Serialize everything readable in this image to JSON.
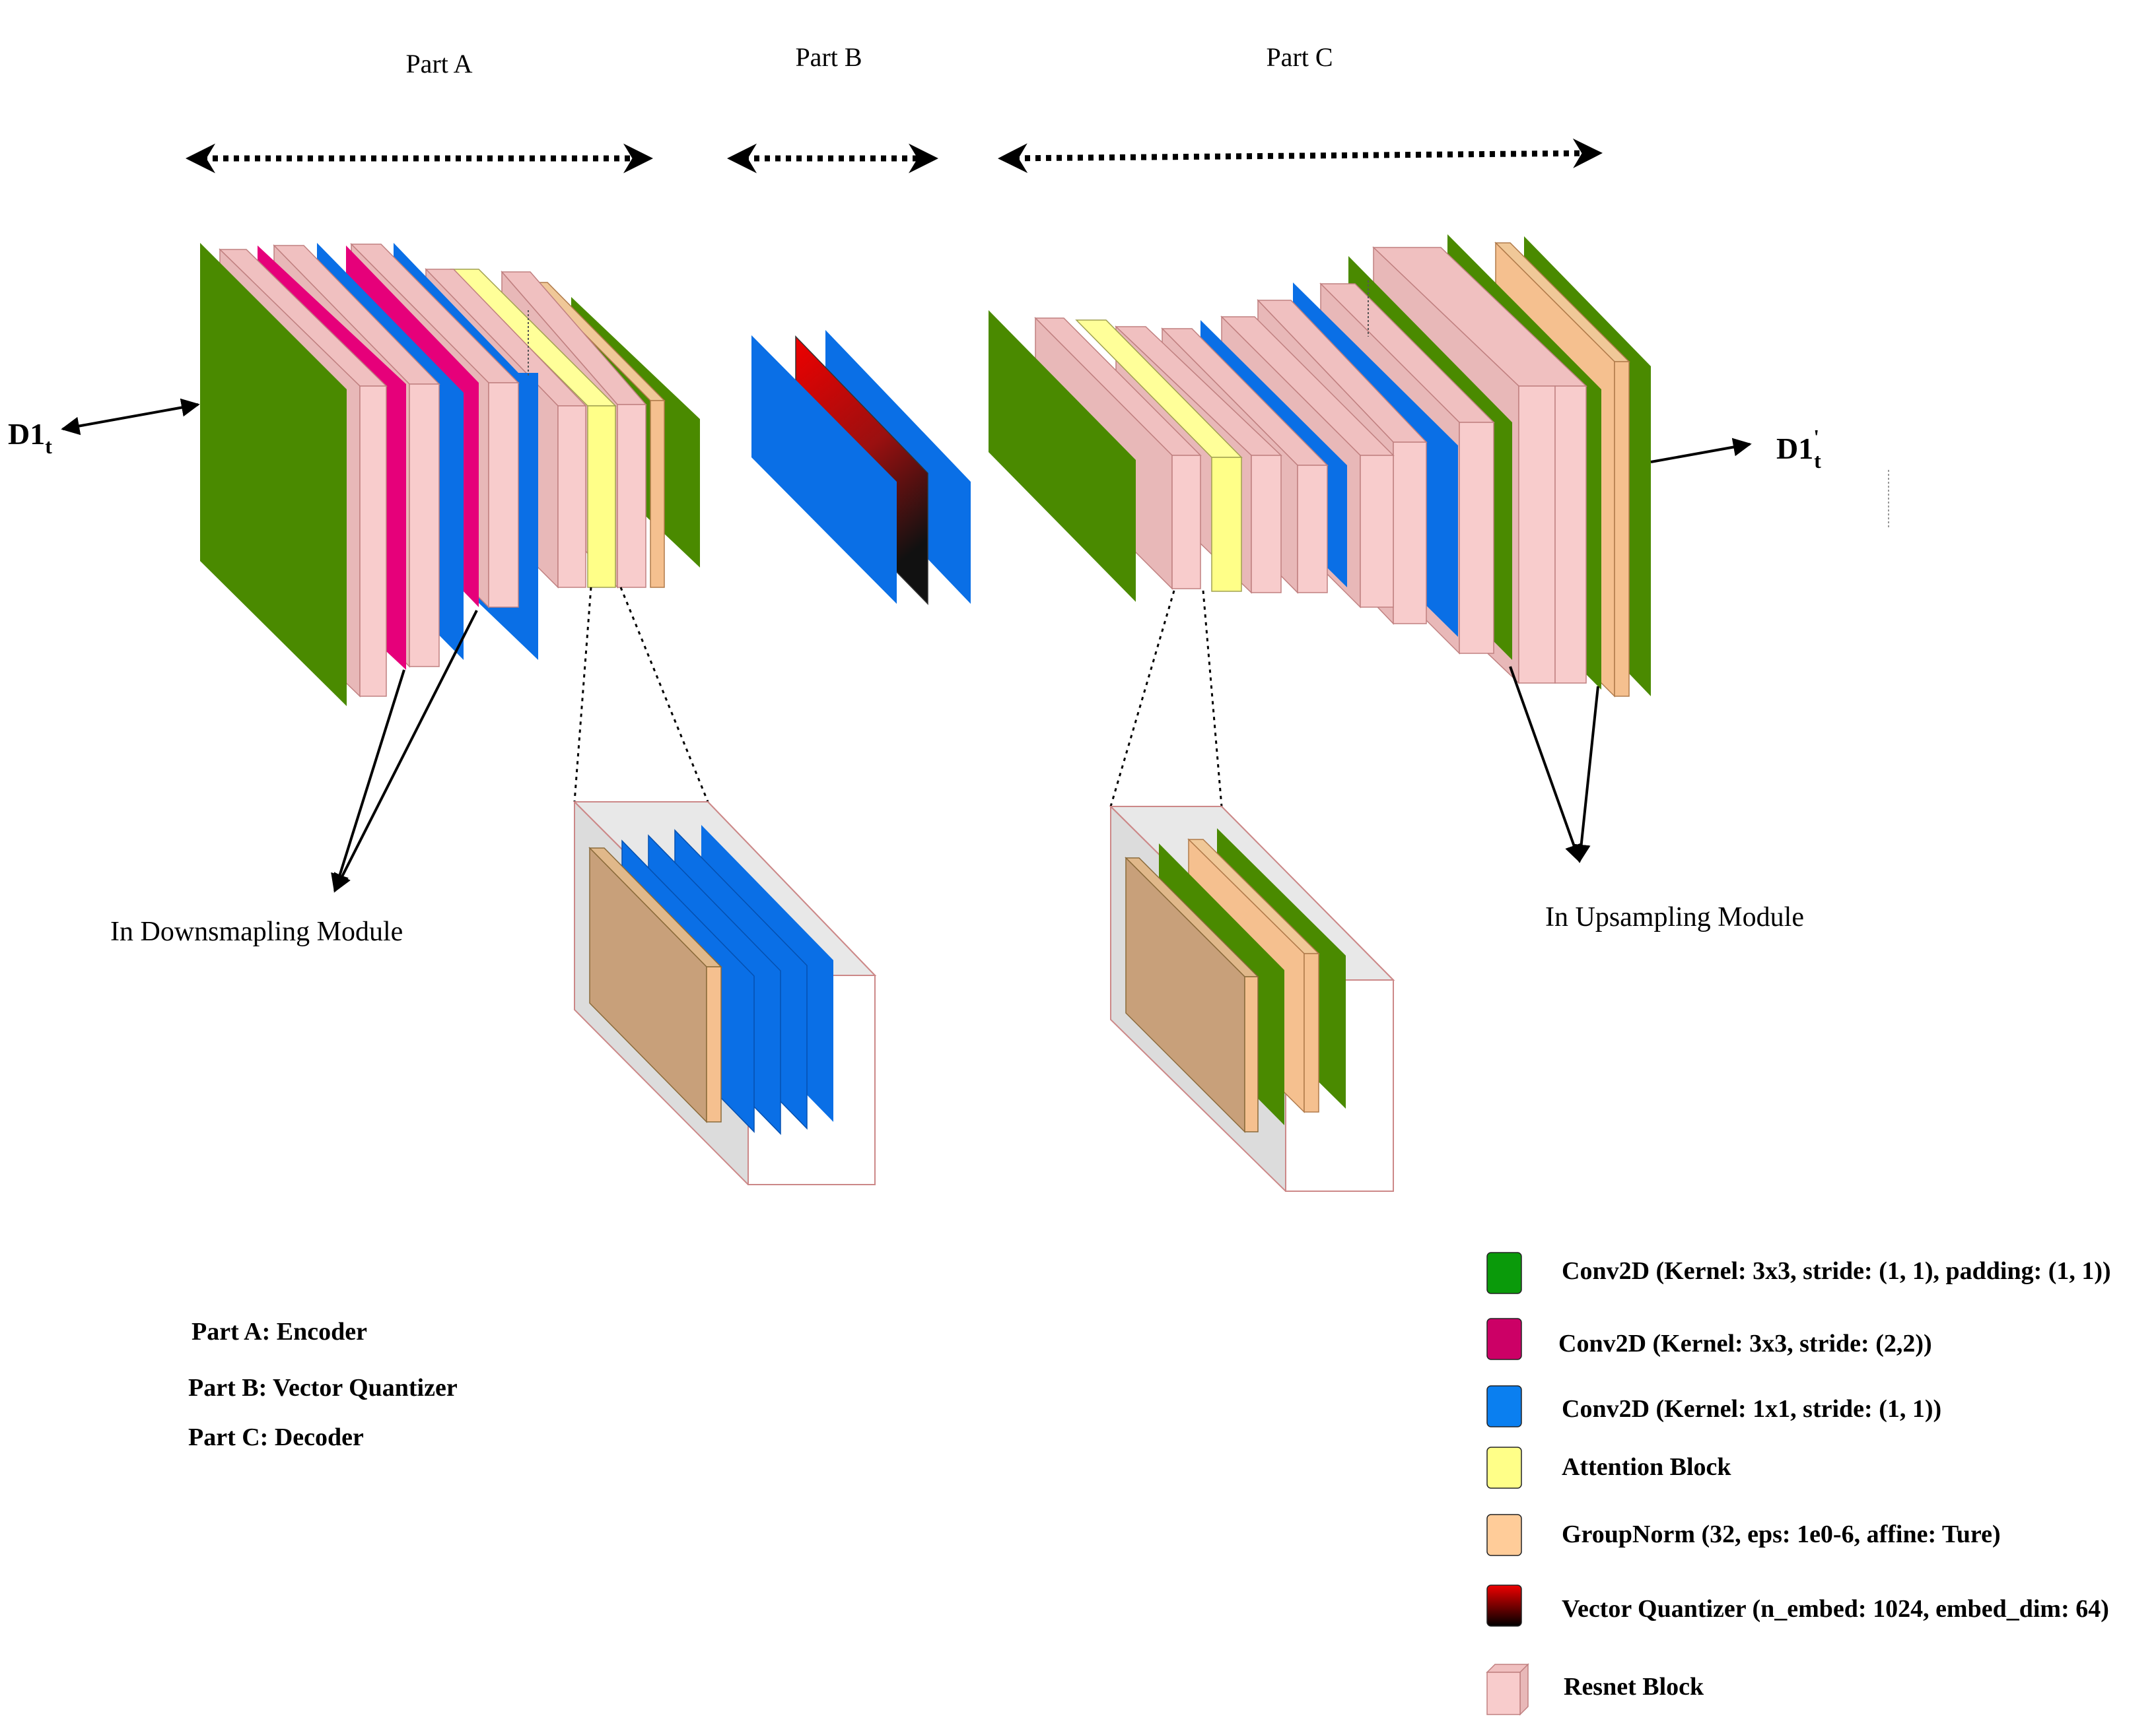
{
  "parts": {
    "a": "Part A",
    "b": "Part B",
    "c": "Part C"
  },
  "io": {
    "input_main": "D1",
    "input_sub": "t",
    "output_main": "D1",
    "output_sup": "'",
    "output_sub": "t"
  },
  "modules": {
    "down": "In Downsmapling Module",
    "up": "In Upsampling Module"
  },
  "part_defs": [
    "Part A: Encoder",
    "Part B: Vector Quantizer",
    "Part C: Decoder"
  ],
  "legend": [
    {
      "label": "Conv2D (Kernel: 3x3, stride: (1, 1), padding: (1, 1))",
      "color": "#0a9a0a"
    },
    {
      "label": "Conv2D (Kernel: 3x3, stride: (2,2))",
      "color": "#cc0066"
    },
    {
      "label": "Conv2D (Kernel: 1x1, stride: (1, 1))",
      "color": "#0a7ff0"
    },
    {
      "label": "Attention Block",
      "color": "#ffff88"
    },
    {
      "label": "GroupNorm (32, eps: 1e0-6, affine: Ture)",
      "color": "#ffcc99"
    },
    {
      "label": "Vector Quantizer (n_embed: 1024, embed_dim: 64)",
      "color": "#cc0000"
    },
    {
      "label": "Resnet Block",
      "color": "#f8cccc"
    }
  ],
  "colors": {
    "green": "#4a8a00",
    "magenta": "#e6007a",
    "blue": "#0a6fe6",
    "yellow": "#ffff88",
    "orange": "#f5c08f",
    "pink": "#f8cccc",
    "red": "#dd0000",
    "brown": "#c8a07a"
  }
}
